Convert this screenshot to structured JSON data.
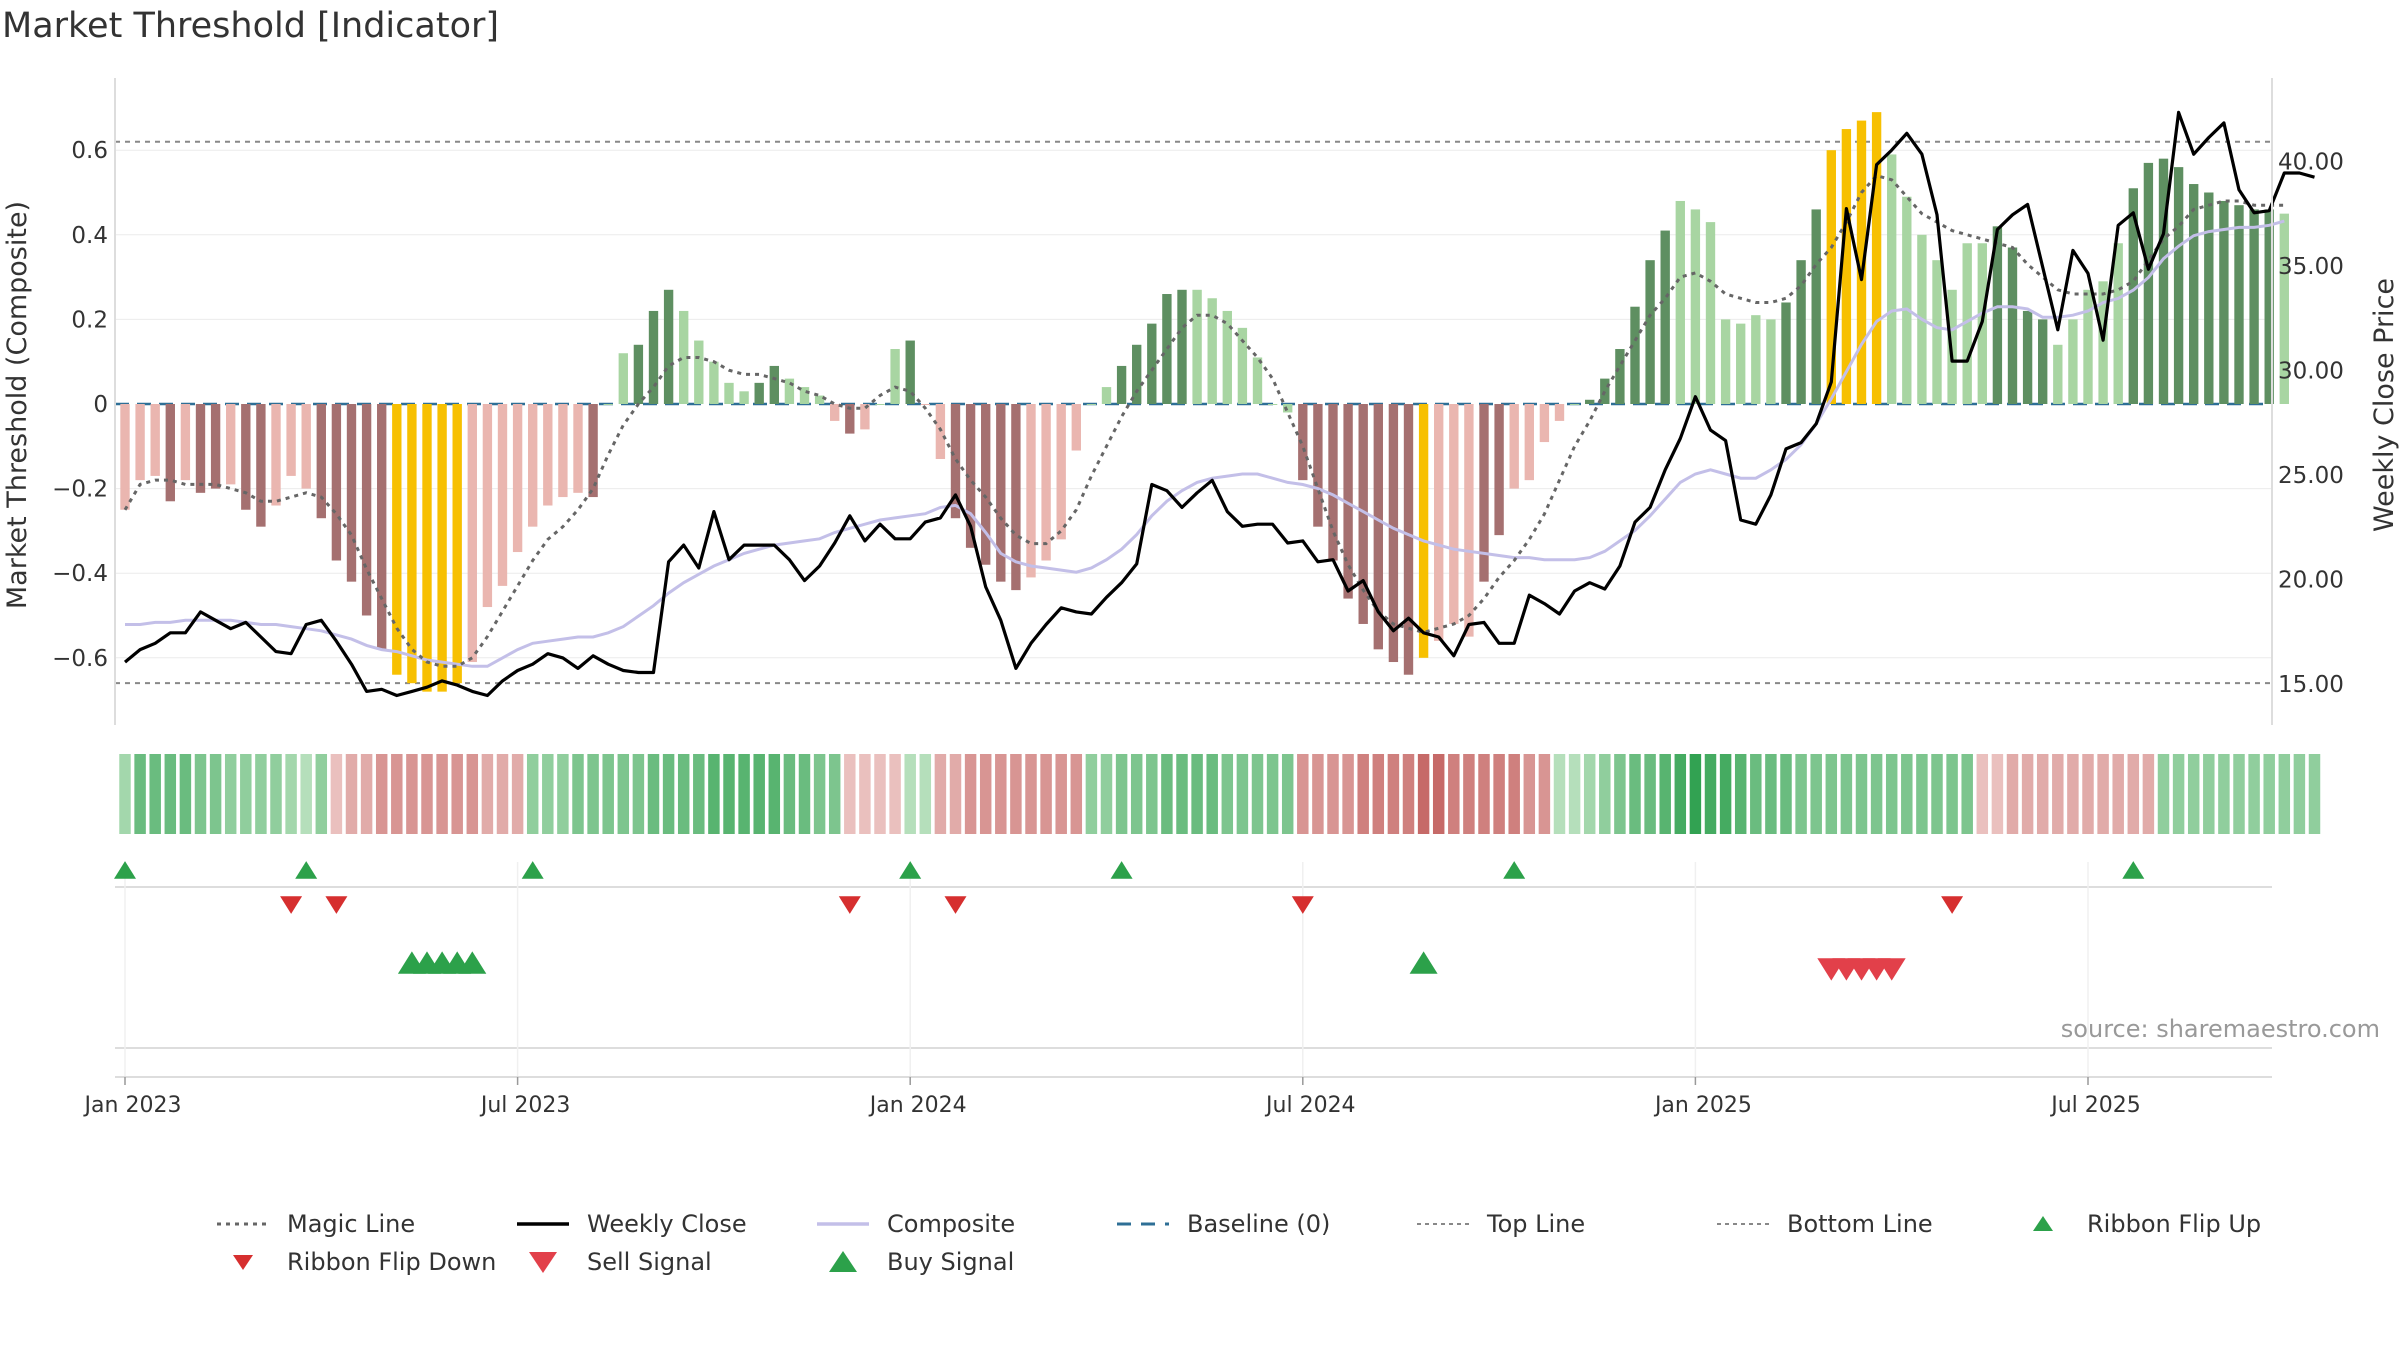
{
  "title": "Market Threshold [Indicator]",
  "source": "source: sharemaestro.com",
  "colors": {
    "dark_green": "#5e8f61",
    "light_green": "#a8d5a2",
    "dark_red": "#a57070",
    "light_red": "#eab6b0",
    "gold": "#f7c001",
    "magic": "#666666",
    "close": "#000000",
    "composite": "#c3bfe8",
    "baseline": "#2e6f96",
    "triangle_green": "#2ca14a",
    "triangle_red": "#d62f2f"
  },
  "chart_data": {
    "type": "bar+line",
    "title": "Market Threshold [Indicator]",
    "ylabel": "Market Threshold (Composite)",
    "y2label": "Weekly Close Price",
    "ylim": [
      -0.72,
      0.76
    ],
    "y2lim": [
      12.9,
      43.0
    ],
    "yticks": [
      0.6,
      0.4,
      0.2,
      0,
      -0.2,
      -0.4,
      -0.6
    ],
    "ytick_labels": [
      "0.6",
      "0.4",
      "0.2",
      "0",
      "−0.2",
      "−0.4",
      "−0.6"
    ],
    "y2ticks": [
      40,
      35,
      30,
      25,
      20,
      15
    ],
    "y2tick_labels": [
      "40.00",
      "35.00",
      "30.00",
      "25.00",
      "20.00",
      "15.00"
    ],
    "xticks": [
      0,
      26,
      52,
      78,
      104,
      130
    ],
    "xtick_labels": [
      "Jan 2023",
      "Jul 2023",
      "Jan 2024",
      "Jul 2024",
      "Jan 2025",
      "Jul 2025"
    ],
    "top_line": 0.62,
    "bottom_line": -0.66,
    "baseline": 0,
    "bars": [
      -0.25,
      -0.18,
      -0.17,
      -0.23,
      -0.18,
      -0.21,
      -0.2,
      -0.19,
      -0.25,
      -0.29,
      -0.24,
      -0.17,
      -0.2,
      -0.27,
      -0.37,
      -0.42,
      -0.5,
      -0.58,
      -0.64,
      -0.66,
      -0.68,
      -0.68,
      -0.66,
      -0.61,
      -0.48,
      -0.43,
      -0.35,
      -0.29,
      -0.24,
      -0.22,
      -0.21,
      -0.22,
      0,
      0.12,
      0.14,
      0.22,
      0.27,
      0.22,
      0.15,
      0.1,
      0.05,
      0.03,
      0.05,
      0.09,
      0.06,
      0.04,
      0.02,
      -0.04,
      -0.07,
      -0.06,
      0,
      0.13,
      0.15,
      0,
      -0.13,
      -0.27,
      -0.34,
      -0.38,
      -0.42,
      -0.44,
      -0.41,
      -0.37,
      -0.32,
      -0.11,
      0,
      0.04,
      0.09,
      0.14,
      0.19,
      0.26,
      0.27,
      0.27,
      0.25,
      0.22,
      0.18,
      0.11,
      0,
      -0.02,
      -0.18,
      -0.29,
      -0.37,
      -0.46,
      -0.52,
      -0.58,
      -0.61,
      -0.64,
      -0.6,
      -0.56,
      -0.52,
      -0.55,
      -0.42,
      -0.31,
      -0.2,
      -0.18,
      -0.09,
      -0.04,
      0,
      0.01,
      0.06,
      0.13,
      0.23,
      0.34,
      0.41,
      0.48,
      0.46,
      0.43,
      0.2,
      0.19,
      0.21,
      0.2,
      0.24,
      0.34,
      0.46,
      0.6,
      0.65,
      0.67,
      0.69,
      0.59,
      0.49,
      0.4,
      0.34,
      0.27,
      0.38,
      0.38,
      0.42,
      0.37,
      0.22,
      0.2,
      0.14,
      0.2,
      0.27,
      0.29,
      0.38,
      0.51,
      0.57,
      0.58,
      0.56,
      0.52,
      0.5,
      0.48,
      0.47,
      0.46,
      0.46,
      0.45
    ],
    "bar_colors": [
      "lr",
      "lr",
      "lr",
      "dr",
      "lr",
      "dr",
      "dr",
      "lr",
      "dr",
      "dr",
      "lr",
      "lr",
      "lr",
      "dr",
      "dr",
      "dr",
      "dr",
      "dr",
      "go",
      "go",
      "go",
      "go",
      "go",
      "lr",
      "lr",
      "lr",
      "lr",
      "lr",
      "lr",
      "lr",
      "lr",
      "dr",
      "lg",
      "lg",
      "dg",
      "dg",
      "dg",
      "lg",
      "lg",
      "lg",
      "lg",
      "lg",
      "dg",
      "dg",
      "lg",
      "lg",
      "lg",
      "lr",
      "dr",
      "lr",
      "lg",
      "lg",
      "dg",
      "lr",
      "lr",
      "dr",
      "dr",
      "dr",
      "dr",
      "dr",
      "lr",
      "lr",
      "lr",
      "lr",
      "lg",
      "lg",
      "dg",
      "dg",
      "dg",
      "dg",
      "dg",
      "lg",
      "lg",
      "lg",
      "lg",
      "lg",
      "lg",
      "lg",
      "dr",
      "dr",
      "dr",
      "dr",
      "dr",
      "dr",
      "dr",
      "dr",
      "go",
      "lr",
      "lr",
      "lr",
      "dr",
      "dr",
      "lr",
      "lr",
      "lr",
      "lr",
      "lg",
      "dg",
      "dg",
      "dg",
      "dg",
      "dg",
      "dg",
      "lg",
      "lg",
      "lg",
      "lg",
      "lg",
      "lg",
      "lg",
      "dg",
      "dg",
      "dg",
      "go",
      "go",
      "go",
      "go",
      "lg",
      "lg",
      "lg",
      "lg",
      "lg",
      "lg",
      "lg",
      "dg",
      "dg",
      "dg",
      "dg",
      "lg",
      "lg",
      "lg",
      "lg",
      "lg",
      "dg",
      "dg",
      "dg",
      "dg",
      "dg",
      "dg",
      "dg",
      "dg",
      "dg",
      "dg",
      "lg",
      "lg",
      "lg",
      "lg"
    ],
    "magic_line": [
      -0.25,
      -0.19,
      -0.18,
      -0.18,
      -0.19,
      -0.19,
      -0.19,
      -0.2,
      -0.21,
      -0.23,
      -0.23,
      -0.22,
      -0.21,
      -0.22,
      -0.26,
      -0.31,
      -0.39,
      -0.46,
      -0.53,
      -0.58,
      -0.61,
      -0.62,
      -0.62,
      -0.6,
      -0.55,
      -0.49,
      -0.43,
      -0.37,
      -0.32,
      -0.29,
      -0.25,
      -0.2,
      -0.12,
      -0.05,
      0.0,
      0.04,
      0.09,
      0.11,
      0.11,
      0.1,
      0.08,
      0.07,
      0.07,
      0.06,
      0.05,
      0.03,
      0.02,
      0.0,
      -0.01,
      -0.01,
      0.02,
      0.04,
      0.03,
      -0.01,
      -0.06,
      -0.13,
      -0.18,
      -0.22,
      -0.27,
      -0.31,
      -0.33,
      -0.33,
      -0.3,
      -0.25,
      -0.17,
      -0.1,
      -0.03,
      0.03,
      0.08,
      0.13,
      0.18,
      0.21,
      0.21,
      0.19,
      0.15,
      0.11,
      0.06,
      -0.02,
      -0.1,
      -0.2,
      -0.3,
      -0.38,
      -0.44,
      -0.49,
      -0.52,
      -0.53,
      -0.54,
      -0.53,
      -0.52,
      -0.5,
      -0.46,
      -0.41,
      -0.37,
      -0.32,
      -0.26,
      -0.18,
      -0.1,
      -0.04,
      0.03,
      0.09,
      0.15,
      0.21,
      0.25,
      0.3,
      0.31,
      0.29,
      0.26,
      0.25,
      0.24,
      0.24,
      0.25,
      0.28,
      0.33,
      0.37,
      0.43,
      0.5,
      0.54,
      0.53,
      0.49,
      0.45,
      0.43,
      0.41,
      0.4,
      0.39,
      0.38,
      0.37,
      0.33,
      0.3,
      0.27,
      0.26,
      0.26,
      0.26,
      0.27,
      0.29,
      0.34,
      0.39,
      0.42,
      0.46,
      0.47,
      0.48,
      0.48,
      0.47,
      0.47,
      0.47
    ],
    "weekly_close": [
      16.0,
      16.6,
      16.9,
      17.4,
      17.4,
      18.4,
      18.0,
      17.6,
      17.9,
      17.2,
      16.5,
      16.4,
      17.8,
      18.0,
      17.0,
      15.9,
      14.6,
      14.7,
      14.4,
      14.6,
      14.8,
      15.1,
      14.9,
      14.6,
      14.4,
      15.1,
      15.6,
      15.9,
      16.4,
      16.2,
      15.7,
      16.3,
      15.9,
      15.6,
      15.5,
      15.5,
      20.8,
      21.6,
      20.5,
      23.2,
      20.9,
      21.6,
      21.6,
      21.6,
      20.9,
      19.9,
      20.6,
      21.7,
      23.0,
      21.8,
      22.6,
      21.9,
      21.9,
      22.7,
      22.9,
      24.0,
      22.5,
      19.6,
      18.0,
      15.7,
      16.9,
      17.8,
      18.6,
      18.4,
      18.3,
      19.1,
      19.8,
      20.7,
      24.5,
      24.2,
      23.4,
      24.1,
      24.7,
      23.2,
      22.5,
      22.6,
      22.6,
      21.7,
      21.8,
      20.8,
      20.9,
      19.4,
      19.9,
      18.4,
      17.5,
      18.1,
      17.4,
      17.2,
      16.3,
      17.8,
      17.9,
      16.9,
      16.9,
      19.2,
      18.8,
      18.3,
      19.4,
      19.8,
      19.5,
      20.6,
      22.7,
      23.4,
      25.2,
      26.7,
      28.7,
      27.1,
      26.6,
      22.8,
      22.6,
      24.0,
      26.2,
      26.5,
      27.4,
      29.4,
      37.7,
      34.3,
      39.8,
      40.5,
      41.3,
      40.3,
      37.4,
      30.4,
      30.4,
      32.3,
      36.7,
      37.4,
      37.9,
      34.9,
      31.9,
      35.7,
      34.6,
      31.4,
      36.9,
      37.5,
      34.8,
      36.5,
      42.3,
      40.3,
      41.1,
      41.8,
      38.6,
      37.5,
      37.6,
      39.4,
      39.4,
      39.2
    ],
    "composite": [
      17.8,
      17.8,
      17.9,
      17.9,
      18.0,
      18.0,
      18.0,
      18.0,
      17.9,
      17.8,
      17.8,
      17.7,
      17.6,
      17.5,
      17.3,
      17.1,
      16.8,
      16.6,
      16.5,
      16.3,
      16.1,
      16.0,
      15.9,
      15.8,
      15.8,
      16.2,
      16.6,
      16.9,
      17.0,
      17.1,
      17.2,
      17.2,
      17.4,
      17.7,
      18.2,
      18.7,
      19.3,
      19.8,
      20.2,
      20.6,
      20.9,
      21.2,
      21.4,
      21.6,
      21.7,
      21.8,
      21.9,
      22.2,
      22.4,
      22.6,
      22.8,
      22.9,
      23.0,
      23.1,
      23.4,
      23.5,
      23.1,
      22.2,
      21.2,
      20.8,
      20.6,
      20.5,
      20.4,
      20.3,
      20.5,
      20.9,
      21.4,
      22.1,
      23.0,
      23.7,
      24.2,
      24.6,
      24.8,
      24.9,
      25.0,
      25.0,
      24.8,
      24.6,
      24.5,
      24.3,
      24.0,
      23.6,
      23.2,
      22.8,
      22.4,
      22.1,
      21.8,
      21.6,
      21.4,
      21.3,
      21.2,
      21.1,
      21.0,
      21.0,
      20.9,
      20.9,
      20.9,
      21.0,
      21.3,
      21.8,
      22.3,
      23.0,
      23.8,
      24.6,
      25.0,
      25.2,
      25.0,
      24.8,
      24.8,
      25.2,
      25.7,
      26.4,
      27.4,
      28.6,
      29.9,
      31.2,
      32.3,
      32.8,
      32.9,
      32.4,
      32.0,
      31.9,
      32.3,
      32.7,
      33.0,
      33.0,
      32.9,
      32.5,
      32.5,
      32.6,
      32.8,
      33.2,
      33.4,
      33.8,
      34.4,
      35.3,
      35.9,
      36.4,
      36.6,
      36.7,
      36.8,
      36.8,
      36.9,
      37.1
    ],
    "ribbon": [
      2,
      5,
      5,
      5,
      5,
      4,
      4,
      3,
      3,
      3,
      3,
      2,
      1,
      3,
      -1,
      -2,
      -2,
      -3,
      -3,
      -3,
      -3,
      -3,
      -3,
      -3,
      -2,
      -2,
      -2,
      3,
      3,
      3,
      4,
      4,
      4,
      4,
      4,
      5,
      5,
      5,
      5,
      6,
      6,
      6,
      6,
      6,
      5,
      5,
      4,
      4,
      -1,
      -1,
      -1,
      -1,
      1,
      1,
      -2,
      -2,
      -3,
      -3,
      -3,
      -3,
      -3,
      -3,
      -3,
      -3,
      3,
      3,
      4,
      4,
      4,
      5,
      5,
      5,
      5,
      4,
      4,
      4,
      4,
      4,
      -3,
      -3,
      -3,
      -3,
      -4,
      -4,
      -4,
      -4,
      -5,
      -5,
      -4,
      -4,
      -4,
      -4,
      -4,
      -3,
      -3,
      1,
      1,
      2,
      3,
      4,
      5,
      5,
      6,
      7,
      8,
      7,
      7,
      6,
      5,
      5,
      5,
      4,
      4,
      4,
      4,
      4,
      4,
      4,
      4,
      4,
      4,
      4,
      4,
      -1,
      -1,
      -2,
      -2,
      -2,
      -2,
      -2,
      -2,
      -2,
      -2,
      -2,
      -2,
      3,
      3,
      3,
      3,
      3,
      3,
      3,
      3,
      3,
      3,
      3
    ],
    "ribbon_flip_up_weeks": [
      0,
      12,
      27,
      52,
      66,
      92,
      133
    ],
    "ribbon_flip_down_weeks": [
      11,
      14,
      48,
      55,
      78,
      121
    ],
    "buy_signal_weeks": [
      19,
      20,
      21,
      22,
      23,
      86
    ],
    "sell_signal_weeks": [
      113,
      114,
      115,
      116,
      117
    ]
  },
  "legend": [
    {
      "label": "Magic Line",
      "kind": "dotted",
      "color": "#666666"
    },
    {
      "label": "Weekly Close",
      "kind": "solid",
      "color": "#000000"
    },
    {
      "label": "Composite",
      "kind": "solid_light",
      "color": "#c3bfe8"
    },
    {
      "label": "Baseline (0)",
      "kind": "dashed",
      "color": "#2e6f96"
    },
    {
      "label": "Top Line",
      "kind": "dotted_light",
      "color": "#888888"
    },
    {
      "label": "Bottom Line",
      "kind": "dotted_light",
      "color": "#888888"
    },
    {
      "label": "Ribbon Flip Up",
      "kind": "tri_up_small",
      "color": "#2ca14a"
    },
    {
      "label": "Ribbon Flip Down",
      "kind": "tri_down_small",
      "color": "#d62f2f"
    },
    {
      "label": "Sell Signal",
      "kind": "tri_down",
      "color": "#e2404a"
    },
    {
      "label": "Buy Signal",
      "kind": "tri_up",
      "color": "#2ca14a"
    }
  ]
}
